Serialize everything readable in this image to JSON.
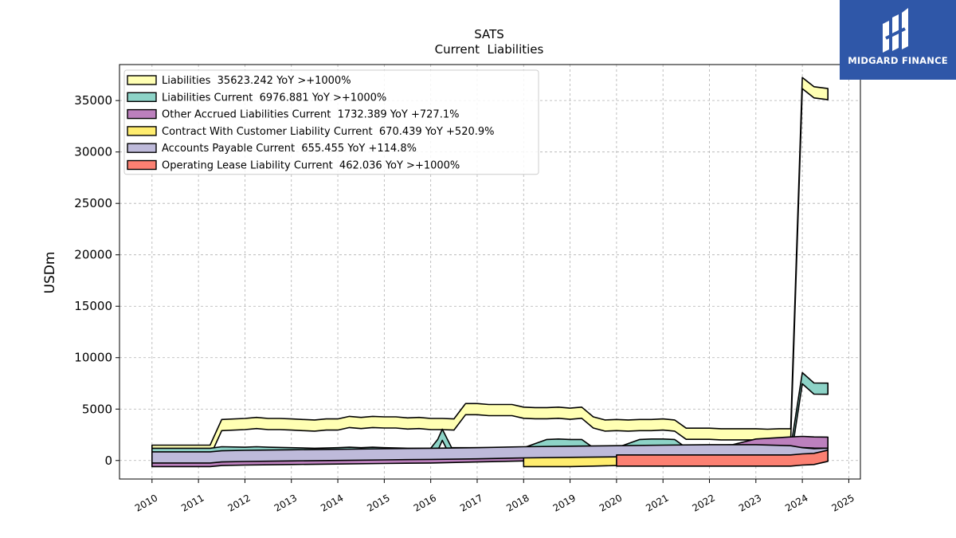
{
  "chart_data": {
    "type": "area",
    "title": "SATS",
    "subtitle": "Current  Liabilities",
    "ylabel": "USDm",
    "xlabel": "",
    "xlim": [
      2009.3,
      2025.25
    ],
    "ylim": [
      -1800,
      38500
    ],
    "x_ticks": [
      "2010",
      "2011",
      "2012",
      "2013",
      "2014",
      "2015",
      "2016",
      "2017",
      "2018",
      "2019",
      "2020",
      "2021",
      "2022",
      "2023",
      "2024",
      "2025"
    ],
    "y_ticks": [
      "0",
      "5000",
      "10000",
      "15000",
      "20000",
      "25000",
      "30000",
      "35000"
    ],
    "grid": true,
    "legend_position": "top-left",
    "series": [
      {
        "name": "Liabilities  35623.242 YoY >+1000%",
        "color": "#ffffb3",
        "x": [
          2010.0,
          2011.25,
          2011.5,
          2012.0,
          2012.25,
          2012.5,
          2012.75,
          2013.0,
          2013.25,
          2013.5,
          2013.75,
          2014.0,
          2014.25,
          2014.5,
          2014.75,
          2015.0,
          2015.25,
          2015.5,
          2015.75,
          2016.0,
          2016.25,
          2016.5,
          2016.75,
          2017.0,
          2017.25,
          2017.5,
          2017.75,
          2018.0,
          2018.25,
          2018.5,
          2018.75,
          2019.0,
          2019.25,
          2019.5,
          2019.75,
          2020.0,
          2020.25,
          2020.5,
          2020.75,
          2021.0,
          2021.25,
          2021.5,
          2021.75,
          2022.0,
          2022.25,
          2022.5,
          2022.75,
          2023.0,
          2023.25,
          2023.5,
          2023.75,
          2024.0,
          2024.25,
          2024.55
        ],
        "values": [
          950,
          950,
          3450,
          3550,
          3650,
          3550,
          3550,
          3500,
          3450,
          3400,
          3500,
          3500,
          3750,
          3650,
          3750,
          3700,
          3700,
          3600,
          3650,
          3550,
          3550,
          3500,
          5000,
          5000,
          4900,
          4900,
          4900,
          4650,
          4600,
          4600,
          4650,
          4550,
          4650,
          3700,
          3400,
          3450,
          3400,
          3450,
          3450,
          3500,
          3400,
          2600,
          2600,
          2600,
          2550,
          2550,
          2550,
          2550,
          2500,
          2550,
          2550,
          36700,
          35800,
          35623
        ]
      },
      {
        "name": "Liabilities Current  6976.881 YoY >+1000%",
        "color": "#8dd3c7",
        "x": [
          2010.0,
          2011.25,
          2011.5,
          2012.0,
          2012.25,
          2012.5,
          2013.0,
          2013.5,
          2014.0,
          2014.25,
          2014.5,
          2014.75,
          2015.0,
          2015.5,
          2016.0,
          2016.15,
          2016.25,
          2016.45,
          2017.0,
          2018.0,
          2018.5,
          2018.75,
          2019.0,
          2019.25,
          2019.5,
          2020.0,
          2020.5,
          2020.75,
          2021.0,
          2021.25,
          2021.5,
          2022.0,
          2022.5,
          2023.0,
          2023.5,
          2023.75,
          2024.0,
          2024.25,
          2024.55
        ],
        "values": [
          650,
          650,
          800,
          750,
          800,
          750,
          700,
          650,
          700,
          750,
          700,
          750,
          700,
          650,
          650,
          1500,
          2500,
          700,
          700,
          700,
          1500,
          1550,
          1500,
          1500,
          700,
          700,
          1500,
          1550,
          1550,
          1500,
          700,
          650,
          650,
          650,
          650,
          650,
          8000,
          7000,
          6977
        ]
      },
      {
        "name": "Other Accrued Liabilities Current  1732.389 YoY +727.1%",
        "color": "#bc80bd",
        "x": [
          2010.0,
          2011.25,
          2011.5,
          2012.0,
          2013.0,
          2014.0,
          2015.0,
          2016.0,
          2017.0,
          2018.0,
          2019.0,
          2020.0,
          2021.0,
          2022.0,
          2022.5,
          2023.0,
          2023.75,
          2024.0,
          2024.25,
          2024.55
        ],
        "values": [
          -50,
          -50,
          50,
          100,
          150,
          200,
          250,
          300,
          400,
          500,
          600,
          700,
          800,
          900,
          1000,
          1550,
          1750,
          1800,
          1750,
          1732
        ]
      },
      {
        "name": "Contract With Customer Liability Current  670.439 YoY +520.9%",
        "color": "#ffed6f",
        "x": [
          2018.0,
          2018.5,
          2019.0,
          2019.5,
          2020.0,
          2021.0,
          2022.0,
          2023.0,
          2023.75,
          2024.0,
          2024.25,
          2024.55
        ],
        "values": [
          -50,
          -50,
          -50,
          0,
          50,
          100,
          150,
          200,
          250,
          300,
          400,
          670
        ]
      },
      {
        "name": "Accounts Payable Current  655.455 YoY +114.8%",
        "color": "#bebada",
        "x": [
          2010.0,
          2011.25,
          2011.5,
          2012.0,
          2013.0,
          2014.0,
          2015.0,
          2016.0,
          2017.0,
          2018.0,
          2019.0,
          2020.0,
          2021.0,
          2022.0,
          2023.0,
          2023.75,
          2024.0,
          2024.25,
          2024.55
        ],
        "values": [
          300,
          300,
          400,
          450,
          500,
          550,
          600,
          650,
          700,
          800,
          850,
          900,
          950,
          1000,
          1000,
          900,
          700,
          600,
          655
        ]
      },
      {
        "name": "Operating Lease Liability Current  462.036 YoY >+1000%",
        "color": "#fb8072",
        "x": [
          2020.0,
          2021.0,
          2022.0,
          2023.0,
          2023.75,
          2024.0,
          2024.25,
          2024.55
        ],
        "values": [
          0,
          0,
          0,
          0,
          0,
          100,
          150,
          462
        ]
      }
    ]
  },
  "logo": {
    "text": "MIDGARD FINANCE",
    "color": "#2f57a8"
  }
}
